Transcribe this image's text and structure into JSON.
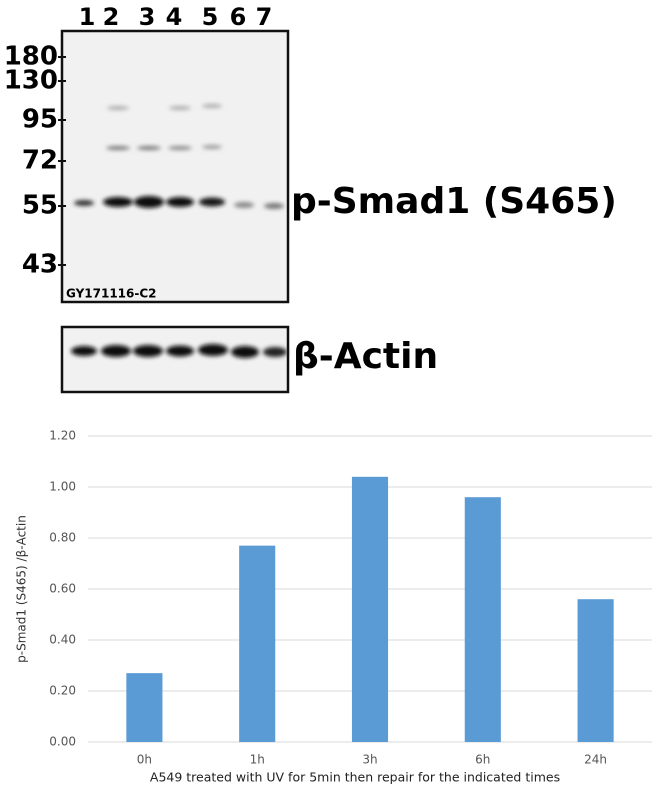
{
  "blot": {
    "lanes": [
      "1",
      "2",
      "3",
      "4",
      "5",
      "6",
      "7"
    ],
    "markers": [
      "180",
      "130",
      "95",
      "72",
      "55",
      "43"
    ],
    "blot_id": "GY171116-C2",
    "target_label": "p-Smad1 (S465)",
    "control_label": "β-Actin"
  },
  "chart_data": {
    "type": "bar",
    "categories": [
      "0h",
      "1h",
      "3h",
      "6h",
      "24h"
    ],
    "values": [
      0.27,
      0.77,
      1.04,
      0.96,
      0.56
    ],
    "color": "#5b9bd5",
    "ylim": [
      0,
      1.2
    ],
    "yticks": [
      {
        "value": 0,
        "label": "0.00"
      },
      {
        "value": 0.2,
        "label": "0.20"
      },
      {
        "value": 0.4,
        "label": "0.40"
      },
      {
        "value": 0.6,
        "label": "0.60"
      },
      {
        "value": 0.8,
        "label": "0.80"
      },
      {
        "value": 1.0,
        "label": "1.00"
      },
      {
        "value": 1.2,
        "label": "1.20"
      }
    ],
    "grid": true,
    "y_label": "p-Smad1 (S465) /β-Actin",
    "x_label": "A549 treated with UV for 5min then repair for the indicated  times"
  }
}
